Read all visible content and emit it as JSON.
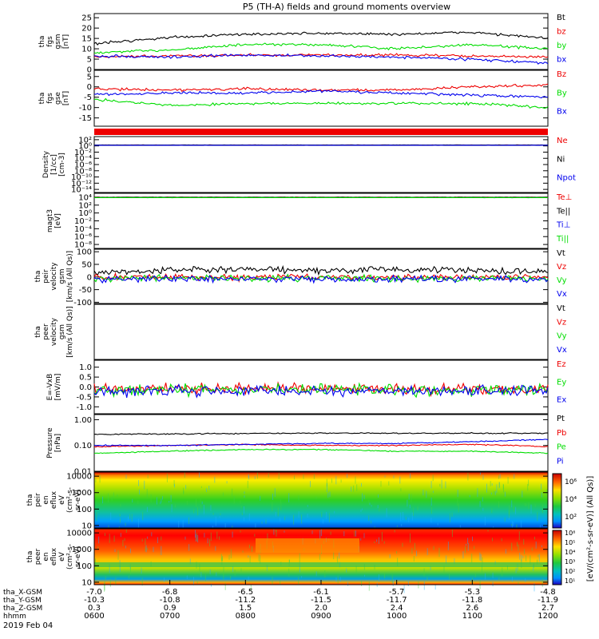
{
  "title": "P5 (TH-A) fields and ground moments overview",
  "date": "2019 Feb 04",
  "colors": {
    "black": "#000000",
    "red": "#ee0000",
    "green": "#00dd00",
    "blue": "#0000ee"
  },
  "panels": [
    {
      "id": "fgs-mag",
      "ylabel_lines": [
        "tha",
        "fgs",
        "gsm",
        "[nT]"
      ],
      "yticks": [
        0,
        5,
        10,
        15,
        20,
        25
      ],
      "tick_labels": [
        "0",
        "5",
        "10",
        "15",
        "20",
        "25"
      ],
      "ylim": [
        0,
        27
      ],
      "scale": "linear",
      "legend": [
        {
          "text": "Bt",
          "color": "#000000"
        },
        {
          "text": "bz",
          "color": "#ee0000"
        },
        {
          "text": "by",
          "color": "#00dd00"
        },
        {
          "text": "bx",
          "color": "#0000ee"
        }
      ]
    },
    {
      "id": "fgs-components",
      "ylabel_lines": [
        "tha",
        "fgs",
        "gse",
        "[nT]"
      ],
      "yticks": [
        -15,
        -10,
        -5,
        0,
        5
      ],
      "tick_labels": [
        "-15",
        "-10",
        "-5",
        "0",
        "5"
      ],
      "ylim": [
        -19,
        8
      ],
      "scale": "linear",
      "legend": [
        {
          "text": "Bz",
          "color": "#ee0000"
        },
        {
          "text": "By",
          "color": "#00dd00"
        },
        {
          "text": "Bx",
          "color": "#0000ee"
        }
      ]
    },
    {
      "id": "density",
      "ylabel_lines": [
        "Density",
        "[1/cc]",
        "[cm-3]"
      ],
      "yticks": [
        2,
        0,
        -2,
        -4,
        -6,
        -8,
        -10,
        -12,
        -14
      ],
      "tick_labels": [
        "10²",
        "10⁰",
        "10⁻²",
        "10⁻⁴",
        "10⁻⁶",
        "10⁻⁸",
        "10⁻¹⁰",
        "10⁻¹²",
        "10⁻¹⁴"
      ],
      "ylim": [
        -15,
        3
      ],
      "scale": "log10",
      "legend": [
        {
          "text": "Ne",
          "color": "#ee0000"
        },
        {
          "text": "Ni",
          "color": "#000000"
        },
        {
          "text": "Npot",
          "color": "#0000ee"
        }
      ]
    },
    {
      "id": "temperature",
      "ylabel_lines": [
        "magt3",
        "[eV]"
      ],
      "yticks": [
        4,
        2,
        0,
        -2,
        -4,
        -6,
        -8
      ],
      "tick_labels": [
        "10⁴",
        "10²",
        "10⁰",
        "10⁻²",
        "10⁻⁴",
        "10⁻⁶",
        "10⁻⁸"
      ],
      "ylim": [
        -9,
        5
      ],
      "scale": "log10",
      "legend": [
        {
          "text": "Te⊥",
          "color": "#ee0000"
        },
        {
          "text": "Te||",
          "color": "#000000"
        },
        {
          "text": "Ti⊥",
          "color": "#0000ee"
        },
        {
          "text": "Ti||",
          "color": "#00dd00"
        }
      ]
    },
    {
      "id": "ion-velocity",
      "ylabel_lines": [
        "tha",
        "peir",
        "velocity",
        "gsm",
        "[km/s (All Qs)]"
      ],
      "yticks": [
        -100,
        -50,
        0,
        50,
        100
      ],
      "tick_labels": [
        "-100",
        "-50",
        "0",
        "50",
        "100"
      ],
      "ylim": [
        -105,
        110
      ],
      "scale": "linear",
      "legend": [
        {
          "text": "Vt",
          "color": "#000000"
        },
        {
          "text": "Vz",
          "color": "#ee0000"
        },
        {
          "text": "Vy",
          "color": "#00dd00"
        },
        {
          "text": "Vx",
          "color": "#0000ee"
        }
      ]
    },
    {
      "id": "electron-velocity",
      "ylabel_lines": [
        "tha",
        "peer",
        "velocity",
        "gsm",
        "[km/s (All Qs)]"
      ],
      "yticks": [],
      "tick_labels": [],
      "ylim": [
        0,
        1
      ],
      "scale": "linear",
      "legend": [
        {
          "text": "Vt",
          "color": "#000000"
        },
        {
          "text": "Vz",
          "color": "#ee0000"
        },
        {
          "text": "Vy",
          "color": "#00dd00"
        },
        {
          "text": "Vx",
          "color": "#0000ee"
        }
      ]
    },
    {
      "id": "efield",
      "ylabel_lines": [
        "E=-VxB",
        "[mV/m]"
      ],
      "yticks": [
        -1.0,
        -0.5,
        0.0,
        0.5,
        1.0
      ],
      "tick_labels": [
        "-1.0",
        "-0.5",
        "0.0",
        "0.5",
        "1.0"
      ],
      "ylim": [
        -1.35,
        1.35
      ],
      "scale": "linear",
      "legend": [
        {
          "text": "Ez",
          "color": "#ee0000"
        },
        {
          "text": "Ey",
          "color": "#00dd00"
        },
        {
          "text": "Ex",
          "color": "#0000ee"
        }
      ]
    },
    {
      "id": "pressure",
      "ylabel_lines": [
        "Pressure",
        "[nPa]"
      ],
      "yticks": [
        0,
        -1,
        -2
      ],
      "tick_labels": [
        "1.00",
        "0.10",
        "0.01"
      ],
      "ylim": [
        -2,
        0.2
      ],
      "scale": "log10",
      "legend": [
        {
          "text": "Pt",
          "color": "#000000"
        },
        {
          "text": "Pb",
          "color": "#ee0000"
        },
        {
          "text": "Pe",
          "color": "#00dd00"
        },
        {
          "text": "Pi",
          "color": "#0000ee"
        }
      ]
    },
    {
      "id": "ion-spectrogram",
      "ylabel_lines": [
        "tha",
        "peir",
        "en",
        "eflux",
        "eV",
        "(cm²-s-",
        "sr-eV)"
      ],
      "yticks": [
        1,
        2,
        3,
        4
      ],
      "tick_labels": [
        "10",
        "100",
        "1000",
        "10000"
      ],
      "ylim": [
        0.85,
        4.25
      ],
      "scale": "log10",
      "legend": []
    },
    {
      "id": "electron-spectrogram",
      "ylabel_lines": [
        "tha",
        "peer",
        "en",
        "eflux",
        "eV",
        "(cm²-s-",
        "sr-eV)"
      ],
      "yticks": [
        1,
        2,
        3,
        4
      ],
      "tick_labels": [
        "10",
        "100",
        "1000",
        "10000"
      ],
      "ylim": [
        0.85,
        4.25
      ],
      "scale": "log10",
      "legend": []
    }
  ],
  "colorbar": {
    "label": "[eV/(cm²-s-sr-eV)] (All Qs)]",
    "ion_ticks": [
      "10⁶",
      "10⁴",
      "10²"
    ],
    "electron_ticks": [
      "10⁸",
      "10⁵",
      "10⁴",
      "10³",
      "10²",
      "10¹"
    ]
  },
  "xaxis": {
    "rows": [
      {
        "label": "tha_X-GSM",
        "values": [
          "-7.0",
          "-6.8",
          "-6.5",
          "-6.1",
          "-5.7",
          "-5.3",
          "-4.8"
        ]
      },
      {
        "label": "tha_Y-GSM",
        "values": [
          "-10.3",
          "-10.8",
          "-11.2",
          "-11.5",
          "-11.7",
          "-11.8",
          "-11.9"
        ]
      },
      {
        "label": "tha_Z-GSM",
        "values": [
          "0.3",
          "0.9",
          "1.5",
          "2.0",
          "2.4",
          "2.6",
          "2.7"
        ]
      },
      {
        "label": "hhmm",
        "values": [
          "0600",
          "0700",
          "0800",
          "0900",
          "1000",
          "1100",
          "1200"
        ]
      }
    ]
  },
  "chart_data": {
    "type": "line",
    "title": "P5 (TH-A) fields and ground moments overview",
    "x": [
      "0600",
      "0700",
      "0800",
      "0900",
      "1000",
      "1100",
      "1200"
    ],
    "xlim": [
      "0600",
      "1200"
    ],
    "panels": [
      {
        "panel": "fgs-mag",
        "series": [
          {
            "name": "Bt",
            "values": [
              12.5,
              15.5,
              17,
              17.5,
              17,
              18,
              15
            ]
          },
          {
            "name": "by",
            "values": [
              8,
              9.5,
              12,
              12,
              10,
              12,
              10
            ]
          },
          {
            "name": "bz",
            "values": [
              6,
              6.5,
              7,
              7,
              7,
              6.5,
              6
            ]
          },
          {
            "name": "bx",
            "values": [
              6.5,
              6,
              7,
              6.5,
              6,
              5,
              3
            ]
          }
        ]
      },
      {
        "panel": "fgs-components",
        "series": [
          {
            "name": "Bz",
            "values": [
              -1,
              -1.5,
              -1,
              -1.5,
              -1.5,
              0,
              1
            ]
          },
          {
            "name": "By",
            "values": [
              -6,
              -9,
              -8,
              -8,
              -8,
              -8,
              -10
            ]
          },
          {
            "name": "Bx",
            "values": [
              -3.5,
              -3,
              -3,
              -2,
              -3,
              -4,
              -5
            ]
          }
        ]
      },
      {
        "panel": "density",
        "series": [
          {
            "name": "Ne",
            "values": [
              0.3,
              0.3,
              0.3,
              0.3,
              0.3,
              0.3,
              0.3
            ]
          },
          {
            "name": "Ni",
            "values": [
              0.3,
              0.3,
              0.3,
              0.3,
              0.3,
              0.3,
              0.3
            ]
          },
          {
            "name": "Npot",
            "values": [
              0.2,
              0.2,
              0.2,
              0.2,
              0.2,
              0.2,
              0.2
            ]
          }
        ]
      },
      {
        "panel": "temperature",
        "series": [
          {
            "name": "Te⊥",
            "values": [
              4,
              4,
              4,
              4,
              4,
              4,
              4
            ]
          },
          {
            "name": "Ti⊥",
            "values": [
              3.9,
              3.9,
              3.9,
              3.9,
              3.9,
              3.9,
              3.9
            ]
          },
          {
            "name": "Te||",
            "values": [
              4,
              4,
              4,
              4,
              4,
              4,
              4
            ]
          },
          {
            "name": "Ti||",
            "values": [
              3.9,
              3.9,
              3.9,
              3.9,
              3.9,
              3.9,
              3.9
            ]
          }
        ]
      },
      {
        "panel": "ion-velocity",
        "series": [
          {
            "name": "Vt",
            "values": [
              20,
              25,
              30,
              25,
              30,
              25,
              20
            ]
          },
          {
            "name": "Vz",
            "values": [
              0,
              0,
              0,
              0,
              0,
              0,
              0
            ]
          },
          {
            "name": "Vy",
            "values": [
              -5,
              -5,
              -5,
              -5,
              -5,
              -5,
              -5
            ]
          },
          {
            "name": "Vx",
            "values": [
              -8,
              -8,
              -8,
              -8,
              -8,
              -8,
              -8
            ]
          }
        ]
      },
      {
        "panel": "efield",
        "series": [
          {
            "name": "Ez",
            "values": [
              -0.1,
              -0.1,
              -0.1,
              -0.1,
              -0.1,
              -0.1,
              -0.1
            ]
          },
          {
            "name": "Ey",
            "values": [
              -0.15,
              -0.15,
              -0.15,
              -0.1,
              -0.15,
              -0.15,
              -0.15
            ]
          },
          {
            "name": "Ex",
            "values": [
              -0.2,
              -0.2,
              -0.2,
              -0.2,
              -0.2,
              -0.2,
              -0.2
            ]
          }
        ]
      },
      {
        "panel": "pressure",
        "series": [
          {
            "name": "Pt",
            "values": [
              0.27,
              0.28,
              0.29,
              0.3,
              0.3,
              0.3,
              0.3
            ]
          },
          {
            "name": "Pb",
            "values": [
              0.09,
              0.1,
              0.11,
              0.1,
              0.1,
              0.11,
              0.09
            ]
          },
          {
            "name": "Pe",
            "values": [
              0.05,
              0.06,
              0.07,
              0.07,
              0.06,
              0.06,
              0.05
            ]
          },
          {
            "name": "Pi",
            "values": [
              0.1,
              0.1,
              0.11,
              0.12,
              0.12,
              0.14,
              0.17
            ]
          }
        ]
      }
    ]
  }
}
